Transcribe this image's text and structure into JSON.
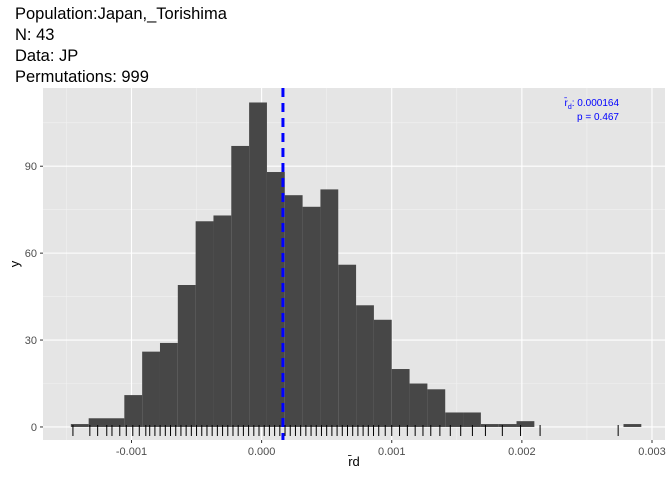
{
  "title_lines": [
    "Population:Japan,_Torishima",
    "N: 43",
    "Data: JP",
    "Permutations: 999"
  ],
  "chart_data": {
    "type": "bar",
    "subtype": "histogram",
    "xlabel": "r̄d",
    "ylabel": "y",
    "xlim": [
      -0.00168,
      0.0031
    ],
    "ylim": [
      -4.5,
      117
    ],
    "x_ticks": [
      -0.001,
      0.0,
      0.001,
      0.002,
      0.003
    ],
    "x_tick_labels": [
      "-0.001",
      "0.000",
      "0.001",
      "0.002",
      "0.003"
    ],
    "y_ticks": [
      0,
      30,
      60,
      90
    ],
    "y_tick_labels": [
      "0",
      "30",
      "60",
      "90"
    ],
    "bin_width": 0.000137,
    "bin_starts": [
      -0.001466,
      -0.001329,
      -0.001192,
      -0.001055,
      -0.000918,
      -0.000781,
      -0.000644,
      -0.000507,
      -0.00037,
      -0.000233,
      -9.6e-05,
      4.1e-05,
      0.000178,
      0.000315,
      0.000452,
      0.000589,
      0.000726,
      0.000863,
      0.001,
      0.001137,
      0.001274,
      0.001411,
      0.001548,
      0.001685,
      0.001822,
      0.001959,
      0.002096,
      0.002233,
      0.00237,
      0.002507,
      0.002644,
      0.002781
    ],
    "counts": [
      1,
      3,
      3,
      11,
      26,
      29,
      49,
      71,
      73,
      97,
      112,
      88,
      80,
      76,
      82,
      56,
      42,
      37,
      20,
      15,
      13,
      5,
      5,
      1,
      1,
      2,
      0,
      0,
      0,
      0,
      0,
      1
    ],
    "observed_value": 0.000164,
    "observed_line_color": "#0000ff",
    "bar_color": "#474747",
    "panel_background": "#e5e5e5",
    "grid": true,
    "rug": true,
    "rug_values": [
      -0.00145,
      -0.00132,
      -0.00126,
      -0.00119,
      -0.00115,
      -0.00109,
      -0.00104,
      -0.00099,
      -0.00094,
      -0.00089,
      -0.00086,
      -0.00082,
      -0.00078,
      -0.00074,
      -0.0007,
      -0.00066,
      -0.00062,
      -0.00058,
      -0.00054,
      -0.0005,
      -0.00046,
      -0.00042,
      -0.00038,
      -0.00034,
      -0.0003,
      -0.00026,
      -0.00022,
      -0.00018,
      -0.00014,
      -0.0001,
      -6e-05,
      -2e-05,
      2e-05,
      6e-05,
      0.0001,
      0.00014,
      0.00018,
      0.00022,
      0.00026,
      0.0003,
      0.00034,
      0.00038,
      0.00042,
      0.00046,
      0.0005,
      0.00054,
      0.00058,
      0.00062,
      0.00066,
      0.0007,
      0.00074,
      0.00078,
      0.00082,
      0.00086,
      0.0009,
      0.00095,
      0.001,
      0.00106,
      0.00112,
      0.00118,
      0.00124,
      0.0013,
      0.00137,
      0.00145,
      0.00153,
      0.00162,
      0.00172,
      0.00185,
      0.00199,
      0.00214,
      0.00274
    ],
    "annotation": {
      "line1_value": ": 0.000164",
      "line2": "p = 0.467",
      "symbol_base": "r̄",
      "symbol_sub": "d"
    }
  }
}
